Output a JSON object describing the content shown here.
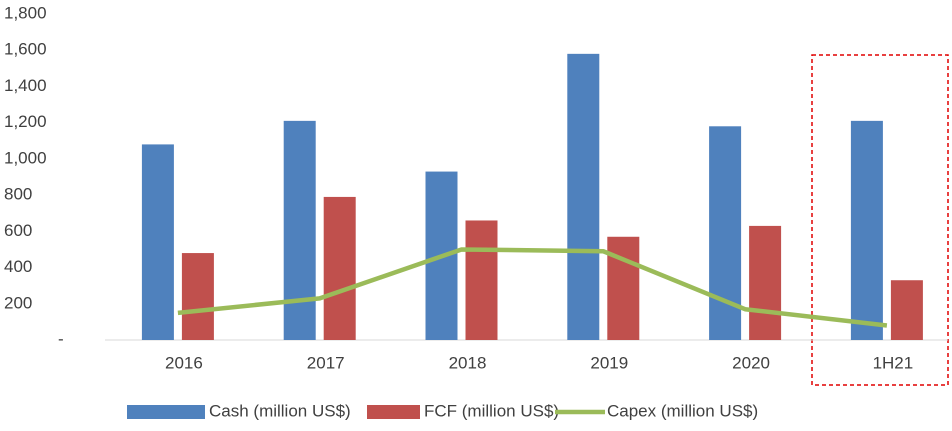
{
  "chart_data": {
    "type": "bar",
    "categories": [
      "2016",
      "2017",
      "2018",
      "2019",
      "2020",
      "1H21"
    ],
    "series": [
      {
        "name": "Cash (million US$)",
        "color": "#4f81bd",
        "values": [
          1080,
          1210,
          930,
          1580,
          1180,
          1210
        ]
      },
      {
        "name": "FCF (million US$)",
        "color": "#c0504d",
        "values": [
          480,
          790,
          660,
          570,
          630,
          330
        ]
      },
      {
        "name": "Capex (million US$)",
        "color": "#9bbb59",
        "type": "line",
        "values": [
          150,
          230,
          500,
          490,
          170,
          80
        ]
      }
    ],
    "ylim": [
      0,
      1800
    ],
    "yticks": [
      {
        "value": 0,
        "label": "-"
      },
      200,
      400,
      600,
      800,
      {
        "value": 1000,
        "label": "1,000"
      },
      {
        "value": 1200,
        "label": "1,200"
      },
      {
        "value": 1400,
        "label": "1,400"
      },
      {
        "value": 1600,
        "label": "1,600"
      },
      {
        "value": 1800,
        "label": "1,800"
      }
    ],
    "grid": false,
    "legend": "bottom"
  }
}
